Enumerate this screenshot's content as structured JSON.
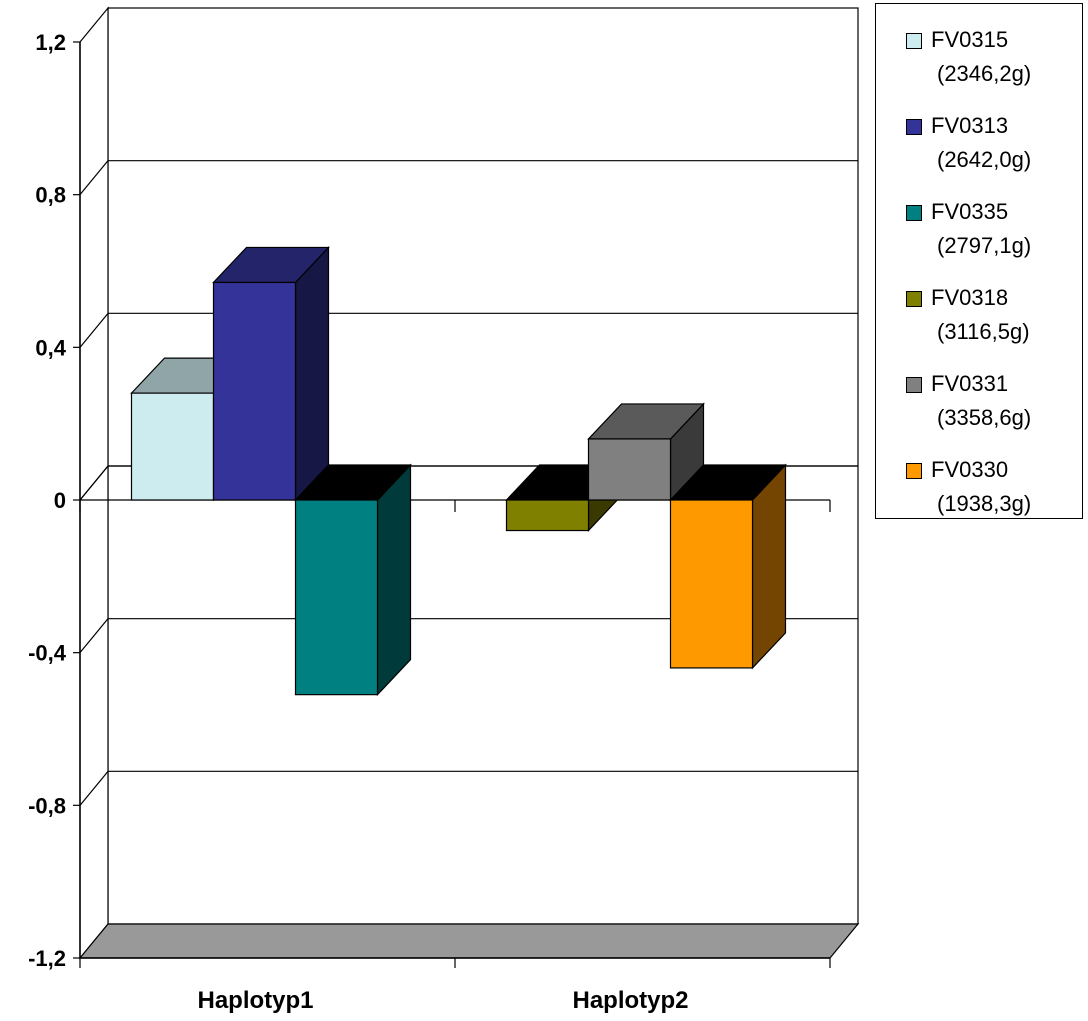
{
  "chart_data": {
    "type": "bar",
    "style": "3d-clustered-column",
    "categories": [
      "Haplotyp1",
      "Haplotyp2"
    ],
    "series": [
      {
        "name": "FV0315",
        "weight": "(2346,2g)",
        "color": "#CCECF0",
        "values": [
          0.28,
          null
        ]
      },
      {
        "name": "FV0313",
        "weight": "(2642,0g)",
        "color": "#333399",
        "values": [
          0.57,
          null
        ]
      },
      {
        "name": "FV0335",
        "weight": "(2797,1g)",
        "color": "#008080",
        "values": [
          -0.51,
          null
        ]
      },
      {
        "name": "FV0318",
        "weight": "(3116,5g)",
        "color": "#808000",
        "values": [
          null,
          -0.08
        ]
      },
      {
        "name": "FV0331",
        "weight": "(3358,6g)",
        "color": "#808080",
        "values": [
          null,
          0.16
        ]
      },
      {
        "name": "FV0330",
        "weight": "(1938,3g)",
        "color": "#FF9900",
        "values": [
          null,
          -0.44
        ]
      }
    ],
    "ylim": [
      -1.2,
      1.2
    ],
    "yticks": [
      "1,2",
      "0,8",
      "0,4",
      "0",
      "-0,4",
      "-0,8",
      "-1,2"
    ],
    "title": "",
    "xlabel": "",
    "ylabel": "",
    "grid": true,
    "legend_position": "right"
  }
}
